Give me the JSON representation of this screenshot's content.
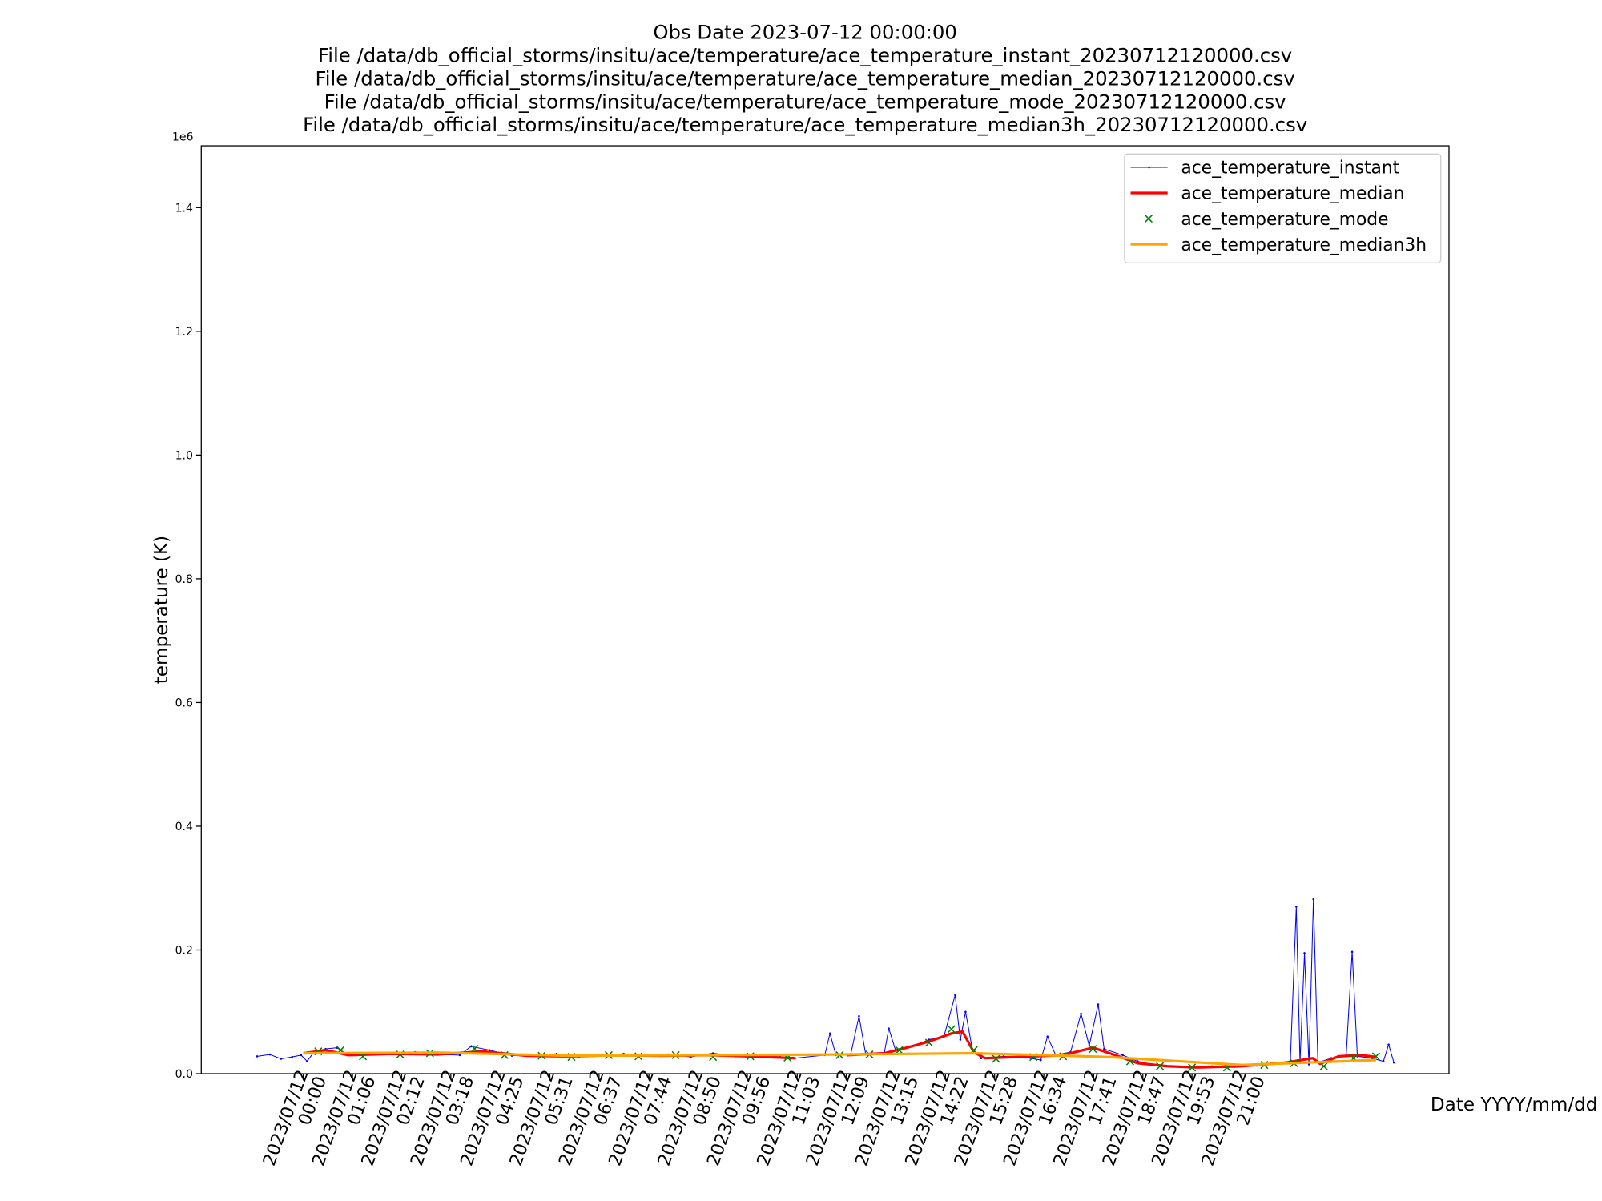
{
  "chart_data": {
    "type": "line",
    "title": [
      "Obs Date 2023-07-12 00:00:00",
      "File /data/db_official_storms/insitu/ace/temperature/ace_temperature_instant_20230712120000.csv",
      "File /data/db_official_storms/insitu/ace/temperature/ace_temperature_median_20230712120000.csv",
      "File /data/db_official_storms/insitu/ace/temperature/ace_temperature_mode_20230712120000.csv",
      "File /data/db_official_storms/insitu/ace/temperature/ace_temperature_median3h_20230712120000.csv"
    ],
    "x_label": "Date YYYY/mm/dd",
    "y_label": "temperature (K)",
    "y_offset_label": "1e6",
    "xlim": [
      "2023-07-11 21:43",
      "2023-07-13 01:38"
    ],
    "ylim": [
      0,
      1500000
    ],
    "yticks": [
      {
        "value": 0,
        "label": "0.0"
      },
      {
        "value": 200000,
        "label": "0.2"
      },
      {
        "value": 400000,
        "label": "0.4"
      },
      {
        "value": 600000,
        "label": "0.6"
      },
      {
        "value": 800000,
        "label": "0.8"
      },
      {
        "value": 1000000,
        "label": "1.0"
      },
      {
        "value": 1200000,
        "label": "1.2"
      },
      {
        "value": 1400000,
        "label": "1.4"
      }
    ],
    "xticks": [
      {
        "value": "2023-07-12 00:00",
        "label": "2023/07/12\n00:00"
      },
      {
        "value": "2023-07-12 01:06",
        "label": "2023/07/12\n01:06"
      },
      {
        "value": "2023-07-12 02:12",
        "label": "2023/07/12\n02:12"
      },
      {
        "value": "2023-07-12 03:18",
        "label": "2023/07/12\n03:18"
      },
      {
        "value": "2023-07-12 04:25",
        "label": "2023/07/12\n04:25"
      },
      {
        "value": "2023-07-12 05:31",
        "label": "2023/07/12\n05:31"
      },
      {
        "value": "2023-07-12 06:37",
        "label": "2023/07/12\n06:37"
      },
      {
        "value": "2023-07-12 07:44",
        "label": "2023/07/12\n07:44"
      },
      {
        "value": "2023-07-12 08:50",
        "label": "2023/07/12\n08:50"
      },
      {
        "value": "2023-07-12 09:56",
        "label": "2023/07/12\n09:56"
      },
      {
        "value": "2023-07-12 11:03",
        "label": "2023/07/12\n11:03"
      },
      {
        "value": "2023-07-12 12:09",
        "label": "2023/07/12\n12:09"
      },
      {
        "value": "2023-07-12 13:15",
        "label": "2023/07/12\n13:15"
      },
      {
        "value": "2023-07-12 14:22",
        "label": "2023/07/12\n14:22"
      },
      {
        "value": "2023-07-12 15:28",
        "label": "2023/07/12\n15:28"
      },
      {
        "value": "2023-07-12 16:34",
        "label": "2023/07/12\n16:34"
      },
      {
        "value": "2023-07-12 17:41",
        "label": "2023/07/12\n17:41"
      },
      {
        "value": "2023-07-12 18:47",
        "label": "2023/07/12\n18:47"
      },
      {
        "value": "2023-07-12 19:53",
        "label": "2023/07/12\n19:53"
      },
      {
        "value": "2023-07-12 21:00",
        "label": "2023/07/12\n21:00"
      }
    ],
    "legend": "upper right",
    "series": [
      {
        "name": "ace_temperature_instant",
        "color": "#0000ff",
        "style": "line-dots",
        "x": [
          "2023-07-11 22:58",
          "2023-07-11 23:15",
          "2023-07-11 23:30",
          "2023-07-11 23:45",
          "2023-07-11 23:57",
          "2023-07-12 00:05",
          "2023-07-12 00:15",
          "2023-07-12 00:30",
          "2023-07-12 00:45",
          "2023-07-12 01:00",
          "2023-07-12 01:30",
          "2023-07-12 02:00",
          "2023-07-12 02:30",
          "2023-07-12 03:00",
          "2023-07-12 03:30",
          "2023-07-12 03:45",
          "2023-07-12 04:10",
          "2023-07-12 04:40",
          "2023-07-12 05:10",
          "2023-07-12 05:40",
          "2023-07-12 06:10",
          "2023-07-12 06:40",
          "2023-07-12 07:10",
          "2023-07-12 07:40",
          "2023-07-12 08:10",
          "2023-07-12 08:40",
          "2023-07-12 09:10",
          "2023-07-12 09:40",
          "2023-07-12 10:10",
          "2023-07-12 10:40",
          "2023-07-12 11:00",
          "2023-07-12 11:40",
          "2023-07-12 11:47",
          "2023-07-12 11:55",
          "2023-07-12 12:15",
          "2023-07-12 12:26",
          "2023-07-12 12:35",
          "2023-07-12 13:00",
          "2023-07-12 13:06",
          "2023-07-12 13:15",
          "2023-07-12 13:40",
          "2023-07-12 14:00",
          "2023-07-12 14:20",
          "2023-07-12 14:35",
          "2023-07-12 14:42",
          "2023-07-12 14:49",
          "2023-07-12 14:58",
          "2023-07-12 15:10",
          "2023-07-12 15:40",
          "2023-07-12 16:10",
          "2023-07-12 16:30",
          "2023-07-12 16:39",
          "2023-07-12 16:50",
          "2023-07-12 17:10",
          "2023-07-12 17:24",
          "2023-07-12 17:35",
          "2023-07-12 17:47",
          "2023-07-12 17:55",
          "2023-07-12 18:20",
          "2023-07-12 18:40",
          "2023-07-12 19:00",
          "2023-07-12 19:20",
          "2023-07-12 19:50",
          "2023-07-12 20:20",
          "2023-07-12 20:50",
          "2023-07-12 21:20",
          "2023-07-12 21:50",
          "2023-07-12 22:05",
          "2023-07-12 22:13",
          "2023-07-12 22:18",
          "2023-07-12 22:24",
          "2023-07-12 22:30",
          "2023-07-12 22:36",
          "2023-07-12 22:42",
          "2023-07-12 23:00",
          "2023-07-12 23:20",
          "2023-07-12 23:28",
          "2023-07-12 23:35",
          "2023-07-12 23:55",
          "2023-07-13 00:10",
          "2023-07-13 00:17",
          "2023-07-13 00:24"
        ],
        "values": [
          28000,
          31000,
          24000,
          27000,
          30000,
          20000,
          36000,
          40000,
          42000,
          30000,
          32000,
          33000,
          35000,
          31000,
          30000,
          44000,
          38000,
          29000,
          30000,
          32000,
          27000,
          30000,
          32000,
          29000,
          31000,
          27000,
          33000,
          28000,
          30000,
          27000,
          25000,
          30000,
          65000,
          30000,
          32000,
          93000,
          31000,
          34000,
          73000,
          38000,
          45000,
          55000,
          60000,
          127000,
          55000,
          100000,
          40000,
          25000,
          28000,
          26000,
          22000,
          60000,
          30000,
          35000,
          97000,
          45000,
          112000,
          40000,
          30000,
          20000,
          15000,
          12000,
          10000,
          12000,
          11000,
          13000,
          16000,
          20000,
          270000,
          18000,
          195000,
          15000,
          282000,
          18000,
          25000,
          30000,
          197000,
          28000,
          25000,
          20000,
          47000,
          18000
        ]
      },
      {
        "name": "ace_temperature_median",
        "color": "#ff0000",
        "style": "thick-line",
        "x": [
          "2023-07-12 00:00",
          "2023-07-12 00:30",
          "2023-07-12 01:00",
          "2023-07-12 02:00",
          "2023-07-12 03:00",
          "2023-07-12 04:00",
          "2023-07-12 05:00",
          "2023-07-12 06:00",
          "2023-07-12 07:00",
          "2023-07-12 08:00",
          "2023-07-12 09:00",
          "2023-07-12 10:00",
          "2023-07-12 11:00",
          "2023-07-12 11:30",
          "2023-07-12 12:10",
          "2023-07-12 13:00",
          "2023-07-12 13:30",
          "2023-07-12 14:00",
          "2023-07-12 14:30",
          "2023-07-12 14:45",
          "2023-07-12 15:00",
          "2023-07-12 15:15",
          "2023-07-12 16:00",
          "2023-07-12 17:00",
          "2023-07-12 17:40",
          "2023-07-12 18:10",
          "2023-07-12 18:40",
          "2023-07-12 19:20",
          "2023-07-12 20:00",
          "2023-07-12 21:00",
          "2023-07-12 22:00",
          "2023-07-12 22:35",
          "2023-07-12 22:45",
          "2023-07-12 23:10",
          "2023-07-12 23:40",
          "2023-07-13 00:00"
        ],
        "values": [
          33000,
          38000,
          30000,
          32000,
          31000,
          36000,
          29000,
          28000,
          30000,
          29000,
          30000,
          28000,
          25000,
          null,
          30000,
          33000,
          42000,
          52000,
          65000,
          68000,
          35000,
          25000,
          27000,
          30000,
          42000,
          30000,
          17000,
          12000,
          10000,
          12000,
          18000,
          25000,
          16000,
          28000,
          30000,
          27000
        ]
      },
      {
        "name": "ace_temperature_mode",
        "color": "#008000",
        "style": "x-markers",
        "x": [
          "2023-07-12 00:20",
          "2023-07-12 00:50",
          "2023-07-12 01:20",
          "2023-07-12 02:10",
          "2023-07-12 02:50",
          "2023-07-12 03:50",
          "2023-07-12 04:30",
          "2023-07-12 05:20",
          "2023-07-12 06:00",
          "2023-07-12 06:50",
          "2023-07-12 07:30",
          "2023-07-12 08:20",
          "2023-07-12 09:10",
          "2023-07-12 10:00",
          "2023-07-12 10:50",
          "2023-07-12 12:00",
          "2023-07-12 12:40",
          "2023-07-12 13:20",
          "2023-07-12 14:00",
          "2023-07-12 14:30",
          "2023-07-12 15:00",
          "2023-07-12 15:30",
          "2023-07-12 16:20",
          "2023-07-12 17:00",
          "2023-07-12 17:40",
          "2023-07-12 18:30",
          "2023-07-12 19:10",
          "2023-07-12 19:53",
          "2023-07-12 20:40",
          "2023-07-12 21:30",
          "2023-07-12 22:10",
          "2023-07-12 22:50",
          "2023-07-12 23:30",
          "2023-07-13 00:00"
        ],
        "values": [
          36000,
          38000,
          28000,
          31000,
          33000,
          40000,
          30000,
          29000,
          27000,
          30000,
          28000,
          30000,
          27000,
          28000,
          26000,
          30000,
          31000,
          38000,
          50000,
          72000,
          38000,
          24000,
          27000,
          28000,
          40000,
          20000,
          12000,
          10000,
          10000,
          14000,
          17000,
          12000,
          25000,
          28000
        ]
      },
      {
        "name": "ace_temperature_median3h",
        "color": "#ffa500",
        "style": "thick-line",
        "x": [
          "2023-07-12 00:00",
          "2023-07-12 03:00",
          "2023-07-12 06:00",
          "2023-07-12 09:00",
          "2023-07-12 12:00",
          "2023-07-12 15:00",
          "2023-07-12 18:00",
          "2023-07-12 21:00",
          "2023-07-13 00:00"
        ],
        "values": [
          33000,
          34000,
          29000,
          30000,
          31000,
          33000,
          27000,
          14000,
          22000
        ]
      }
    ]
  }
}
